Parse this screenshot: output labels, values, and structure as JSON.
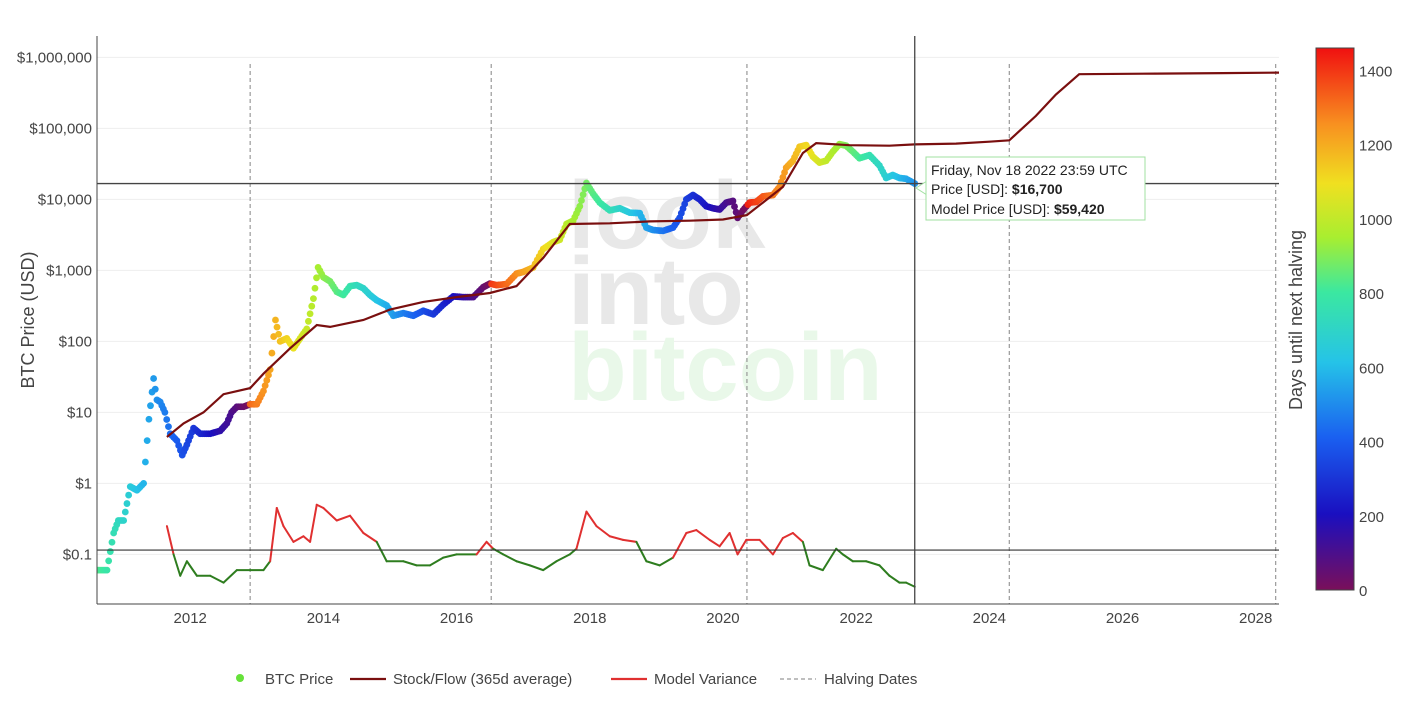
{
  "chart_data": {
    "type": "scatter+line",
    "ylabel": "BTC Price (USD)",
    "y_scale": "log",
    "ylim": [
      0.02,
      2000000
    ],
    "xlim": [
      2010.6,
      2028.35
    ],
    "y_ticks": [
      {
        "value": 0.1,
        "label": "$0.1"
      },
      {
        "value": 1,
        "label": "$1"
      },
      {
        "value": 10,
        "label": "$10"
      },
      {
        "value": 100,
        "label": "$100"
      },
      {
        "value": 1000,
        "label": "$1,000"
      },
      {
        "value": 10000,
        "label": "$10,000"
      },
      {
        "value": 100000,
        "label": "$100,000"
      },
      {
        "value": 1000000,
        "label": "$1,000,000"
      }
    ],
    "x_ticks": [
      {
        "value": 2012,
        "label": "2012"
      },
      {
        "value": 2014,
        "label": "2014"
      },
      {
        "value": 2016,
        "label": "2016"
      },
      {
        "value": 2018,
        "label": "2018"
      },
      {
        "value": 2020,
        "label": "2020"
      },
      {
        "value": 2022,
        "label": "2022"
      },
      {
        "value": 2024,
        "label": "2024"
      },
      {
        "value": 2026,
        "label": "2026"
      },
      {
        "value": 2028,
        "label": "2028"
      }
    ],
    "colorbar": {
      "title": "Days until next halving",
      "range": [
        0,
        1460
      ],
      "ticks": [
        0,
        200,
        400,
        600,
        800,
        1000,
        1200,
        1400
      ]
    },
    "halving_dates": [
      2012.9,
      2016.52,
      2020.36,
      2024.3,
      2028.3
    ],
    "hline_price": 16700,
    "hline_variance": 0.115,
    "vline_date": 2022.88,
    "series": [
      {
        "name": "BTC Price",
        "kind": "markers",
        "points": [
          [
            2010.6,
            0.06
          ],
          [
            2010.75,
            0.06
          ],
          [
            2010.85,
            0.2
          ],
          [
            2010.92,
            0.3
          ],
          [
            2011.0,
            0.3
          ],
          [
            2011.1,
            0.9
          ],
          [
            2011.2,
            0.8
          ],
          [
            2011.3,
            1.0
          ],
          [
            2011.38,
            8
          ],
          [
            2011.45,
            30
          ],
          [
            2011.5,
            15
          ],
          [
            2011.55,
            14
          ],
          [
            2011.62,
            10
          ],
          [
            2011.7,
            5
          ],
          [
            2011.8,
            4
          ],
          [
            2011.88,
            2.5
          ],
          [
            2011.95,
            3.5
          ],
          [
            2012.05,
            6
          ],
          [
            2012.15,
            5
          ],
          [
            2012.3,
            5
          ],
          [
            2012.45,
            5.5
          ],
          [
            2012.55,
            7
          ],
          [
            2012.62,
            10
          ],
          [
            2012.7,
            12
          ],
          [
            2012.8,
            12
          ],
          [
            2012.9,
            13
          ],
          [
            2013.0,
            13
          ],
          [
            2013.1,
            20
          ],
          [
            2013.2,
            40
          ],
          [
            2013.28,
            200
          ],
          [
            2013.35,
            100
          ],
          [
            2013.45,
            110
          ],
          [
            2013.55,
            80
          ],
          [
            2013.65,
            110
          ],
          [
            2013.75,
            150
          ],
          [
            2013.85,
            400
          ],
          [
            2013.92,
            1100
          ],
          [
            2014.0,
            800
          ],
          [
            2014.1,
            700
          ],
          [
            2014.2,
            500
          ],
          [
            2014.3,
            450
          ],
          [
            2014.4,
            600
          ],
          [
            2014.5,
            620
          ],
          [
            2014.6,
            560
          ],
          [
            2014.7,
            450
          ],
          [
            2014.8,
            380
          ],
          [
            2014.95,
            320
          ],
          [
            2015.05,
            230
          ],
          [
            2015.2,
            250
          ],
          [
            2015.35,
            230
          ],
          [
            2015.5,
            270
          ],
          [
            2015.65,
            240
          ],
          [
            2015.8,
            330
          ],
          [
            2015.95,
            430
          ],
          [
            2016.1,
            420
          ],
          [
            2016.25,
            420
          ],
          [
            2016.4,
            580
          ],
          [
            2016.5,
            650
          ],
          [
            2016.6,
            620
          ],
          [
            2016.75,
            640
          ],
          [
            2016.9,
            900
          ],
          [
            2017.0,
            950
          ],
          [
            2017.15,
            1100
          ],
          [
            2017.3,
            2000
          ],
          [
            2017.45,
            2500
          ],
          [
            2017.55,
            2700
          ],
          [
            2017.65,
            4500
          ],
          [
            2017.75,
            5000
          ],
          [
            2017.85,
            8000
          ],
          [
            2017.95,
            17000
          ],
          [
            2018.05,
            12000
          ],
          [
            2018.15,
            9000
          ],
          [
            2018.3,
            7000
          ],
          [
            2018.45,
            7500
          ],
          [
            2018.6,
            6500
          ],
          [
            2018.75,
            6400
          ],
          [
            2018.85,
            4000
          ],
          [
            2018.95,
            3700
          ],
          [
            2019.1,
            3600
          ],
          [
            2019.25,
            4000
          ],
          [
            2019.35,
            5500
          ],
          [
            2019.45,
            10000
          ],
          [
            2019.55,
            11500
          ],
          [
            2019.65,
            10000
          ],
          [
            2019.75,
            8000
          ],
          [
            2019.85,
            7500
          ],
          [
            2019.95,
            7200
          ],
          [
            2020.05,
            9000
          ],
          [
            2020.15,
            9500
          ],
          [
            2020.22,
            5500
          ],
          [
            2020.3,
            7000
          ],
          [
            2020.4,
            9000
          ],
          [
            2020.5,
            9200
          ],
          [
            2020.6,
            11000
          ],
          [
            2020.75,
            11500
          ],
          [
            2020.85,
            15000
          ],
          [
            2020.95,
            28000
          ],
          [
            2021.05,
            35000
          ],
          [
            2021.15,
            55000
          ],
          [
            2021.25,
            58000
          ],
          [
            2021.35,
            40000
          ],
          [
            2021.45,
            33000
          ],
          [
            2021.55,
            35000
          ],
          [
            2021.65,
            47000
          ],
          [
            2021.75,
            60000
          ],
          [
            2021.85,
            57000
          ],
          [
            2021.95,
            47000
          ],
          [
            2022.05,
            38000
          ],
          [
            2022.2,
            42000
          ],
          [
            2022.35,
            30000
          ],
          [
            2022.45,
            20000
          ],
          [
            2022.55,
            22000
          ],
          [
            2022.65,
            20000
          ],
          [
            2022.75,
            19500
          ],
          [
            2022.88,
            16700
          ]
        ]
      },
      {
        "name": "Stock/Flow (365d average)",
        "kind": "line",
        "color": "#7a0f0f",
        "points": [
          [
            2011.65,
            4.5
          ],
          [
            2011.9,
            7
          ],
          [
            2012.2,
            10
          ],
          [
            2012.5,
            18
          ],
          [
            2012.9,
            22
          ],
          [
            2013.1,
            35
          ],
          [
            2013.5,
            80
          ],
          [
            2013.9,
            170
          ],
          [
            2014.1,
            160
          ],
          [
            2014.6,
            200
          ],
          [
            2015.0,
            280
          ],
          [
            2015.5,
            360
          ],
          [
            2016.0,
            420
          ],
          [
            2016.5,
            480
          ],
          [
            2016.9,
            600
          ],
          [
            2017.3,
            1500
          ],
          [
            2017.7,
            4500
          ],
          [
            2018.3,
            4600
          ],
          [
            2018.9,
            4900
          ],
          [
            2019.5,
            5000
          ],
          [
            2020.0,
            5200
          ],
          [
            2020.36,
            6000
          ],
          [
            2020.6,
            9000
          ],
          [
            2020.9,
            15000
          ],
          [
            2021.2,
            45000
          ],
          [
            2021.4,
            62000
          ],
          [
            2021.9,
            58000
          ],
          [
            2022.5,
            57000
          ],
          [
            2022.88,
            59420
          ],
          [
            2023.5,
            61000
          ],
          [
            2024.0,
            65000
          ],
          [
            2024.3,
            68000
          ],
          [
            2024.7,
            150000
          ],
          [
            2025.0,
            300000
          ],
          [
            2025.35,
            580000
          ],
          [
            2026.5,
            590000
          ],
          [
            2027.5,
            600000
          ],
          [
            2028.35,
            610000
          ]
        ]
      },
      {
        "name": "Model Variance",
        "kind": "line",
        "color": "#e03030",
        "color_below": "#2e7d1f",
        "points": [
          [
            2011.65,
            0.25
          ],
          [
            2011.75,
            0.1
          ],
          [
            2011.85,
            0.05
          ],
          [
            2011.95,
            0.08
          ],
          [
            2012.1,
            0.05
          ],
          [
            2012.3,
            0.05
          ],
          [
            2012.5,
            0.04
          ],
          [
            2012.7,
            0.06
          ],
          [
            2012.9,
            0.06
          ],
          [
            2013.1,
            0.06
          ],
          [
            2013.2,
            0.08
          ],
          [
            2013.3,
            0.45
          ],
          [
            2013.4,
            0.25
          ],
          [
            2013.55,
            0.15
          ],
          [
            2013.7,
            0.18
          ],
          [
            2013.8,
            0.15
          ],
          [
            2013.9,
            0.5
          ],
          [
            2014.0,
            0.45
          ],
          [
            2014.2,
            0.3
          ],
          [
            2014.4,
            0.35
          ],
          [
            2014.6,
            0.2
          ],
          [
            2014.8,
            0.15
          ],
          [
            2014.95,
            0.08
          ],
          [
            2015.2,
            0.08
          ],
          [
            2015.4,
            0.07
          ],
          [
            2015.6,
            0.07
          ],
          [
            2015.8,
            0.09
          ],
          [
            2016.0,
            0.1
          ],
          [
            2016.3,
            0.1
          ],
          [
            2016.45,
            0.15
          ],
          [
            2016.55,
            0.12
          ],
          [
            2016.7,
            0.1
          ],
          [
            2016.9,
            0.08
          ],
          [
            2017.1,
            0.07
          ],
          [
            2017.3,
            0.06
          ],
          [
            2017.5,
            0.08
          ],
          [
            2017.7,
            0.1
          ],
          [
            2017.8,
            0.12
          ],
          [
            2017.95,
            0.4
          ],
          [
            2018.1,
            0.25
          ],
          [
            2018.3,
            0.18
          ],
          [
            2018.5,
            0.16
          ],
          [
            2018.7,
            0.15
          ],
          [
            2018.85,
            0.08
          ],
          [
            2019.05,
            0.07
          ],
          [
            2019.25,
            0.09
          ],
          [
            2019.45,
            0.2
          ],
          [
            2019.6,
            0.22
          ],
          [
            2019.8,
            0.16
          ],
          [
            2019.95,
            0.13
          ],
          [
            2020.1,
            0.2
          ],
          [
            2020.22,
            0.1
          ],
          [
            2020.35,
            0.16
          ],
          [
            2020.55,
            0.16
          ],
          [
            2020.75,
            0.1
          ],
          [
            2020.9,
            0.17
          ],
          [
            2021.05,
            0.2
          ],
          [
            2021.2,
            0.15
          ],
          [
            2021.3,
            0.07
          ],
          [
            2021.5,
            0.06
          ],
          [
            2021.7,
            0.12
          ],
          [
            2021.8,
            0.1
          ],
          [
            2021.95,
            0.08
          ],
          [
            2022.15,
            0.08
          ],
          [
            2022.35,
            0.07
          ],
          [
            2022.5,
            0.05
          ],
          [
            2022.65,
            0.04
          ],
          [
            2022.75,
            0.04
          ],
          [
            2022.88,
            0.035
          ]
        ]
      }
    ],
    "legend": [
      {
        "label": "BTC Price",
        "kind": "marker",
        "color": "#66e23a"
      },
      {
        "label": "Stock/Flow (365d average)",
        "kind": "line",
        "color": "#7a0f0f"
      },
      {
        "label": "Model Variance",
        "kind": "line",
        "color": "#e03030"
      },
      {
        "label": "Halving Dates",
        "kind": "dash",
        "color": "#999999"
      }
    ],
    "tooltip": {
      "date": "Friday, Nov 18 2022 23:59 UTC",
      "price_label": "Price [USD]:",
      "price_value": "$16,700",
      "model_label": "Model Price [USD]:",
      "model_value": "$59,420"
    },
    "watermark": [
      "look",
      "into",
      "bitcoin"
    ]
  }
}
